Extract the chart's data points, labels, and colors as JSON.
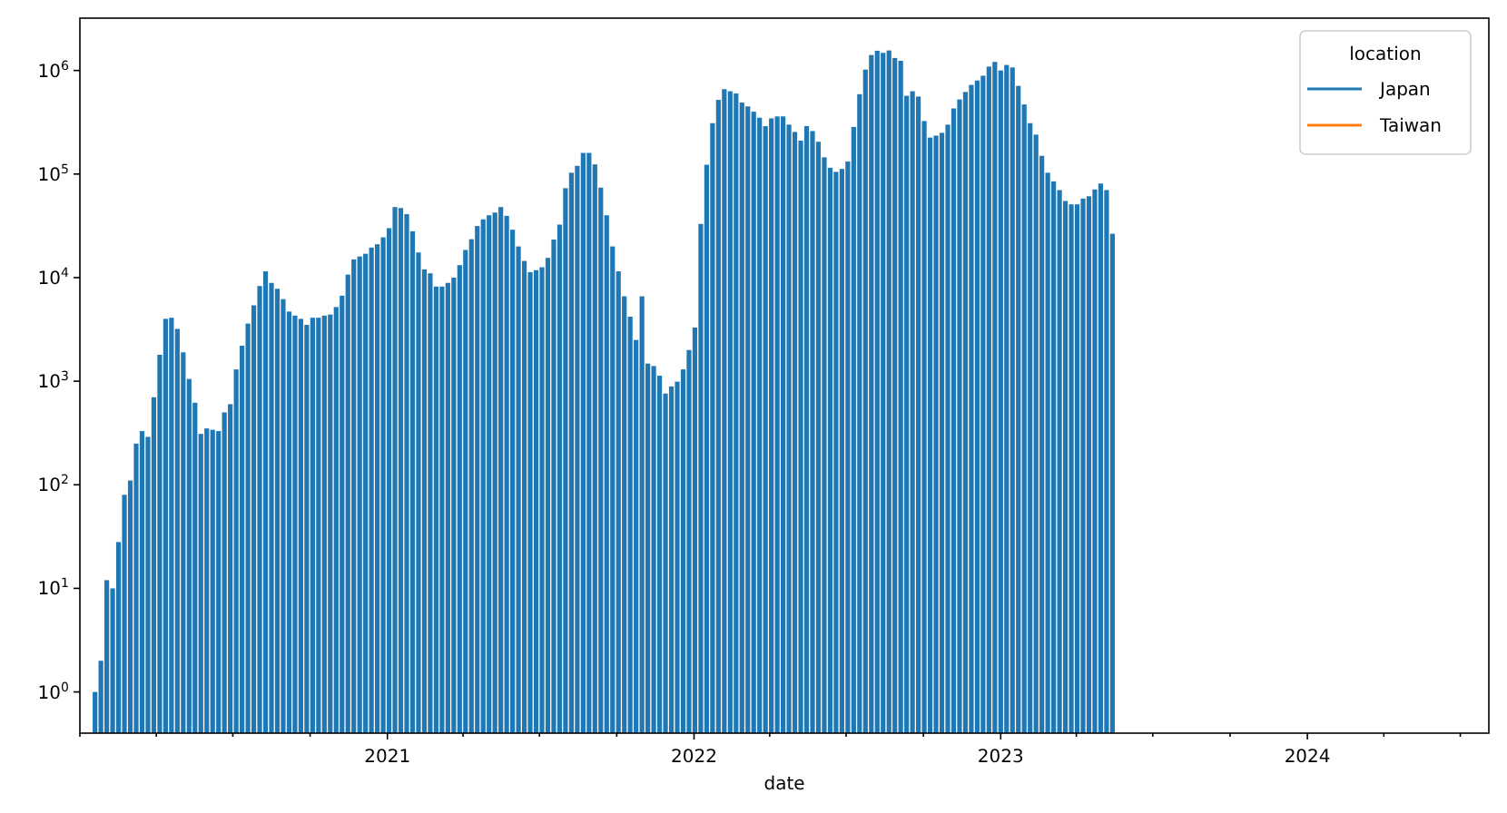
{
  "chart_data": {
    "type": "bar",
    "xlabel": "date",
    "legend_title": "location",
    "legend": "top right",
    "log": "y",
    "x": [
      "2020-01-19",
      "2020-01-26",
      "2020-02-02",
      "2020-02-09",
      "2020-02-16",
      "2020-02-23",
      "2020-03-01",
      "2020-03-08",
      "2020-03-15",
      "2020-03-22",
      "2020-03-29",
      "2020-04-05",
      "2020-04-12",
      "2020-04-19",
      "2020-04-26",
      "2020-05-03",
      "2020-05-10",
      "2020-05-17",
      "2020-05-24",
      "2020-05-31",
      "2020-06-07",
      "2020-06-14",
      "2020-06-21",
      "2020-06-28",
      "2020-07-05",
      "2020-07-12",
      "2020-07-19",
      "2020-07-26",
      "2020-08-02",
      "2020-08-09",
      "2020-08-16",
      "2020-08-23",
      "2020-08-30",
      "2020-09-06",
      "2020-09-13",
      "2020-09-20",
      "2020-09-27",
      "2020-10-04",
      "2020-10-11",
      "2020-10-18",
      "2020-10-25",
      "2020-11-01",
      "2020-11-08",
      "2020-11-15",
      "2020-11-22",
      "2020-11-29",
      "2020-12-06",
      "2020-12-13",
      "2020-12-20",
      "2020-12-27",
      "2021-01-03",
      "2021-01-10",
      "2021-01-17",
      "2021-01-24",
      "2021-01-31",
      "2021-02-07",
      "2021-02-14",
      "2021-02-21",
      "2021-02-28",
      "2021-03-07",
      "2021-03-14",
      "2021-03-21",
      "2021-03-28",
      "2021-04-04",
      "2021-04-11",
      "2021-04-18",
      "2021-04-25",
      "2021-05-02",
      "2021-05-09",
      "2021-05-16",
      "2021-05-23",
      "2021-05-30",
      "2021-06-06",
      "2021-06-13",
      "2021-06-20",
      "2021-06-27",
      "2021-07-04",
      "2021-07-11",
      "2021-07-18",
      "2021-07-25",
      "2021-08-01",
      "2021-08-08",
      "2021-08-15",
      "2021-08-22",
      "2021-08-29",
      "2021-09-05",
      "2021-09-12",
      "2021-09-19",
      "2021-09-26",
      "2021-10-03",
      "2021-10-10",
      "2021-10-17",
      "2021-10-24",
      "2021-10-31",
      "2021-11-07",
      "2021-11-14",
      "2021-11-21",
      "2021-11-28",
      "2021-12-05",
      "2021-12-12",
      "2021-12-19",
      "2021-12-26",
      "2022-01-02",
      "2022-01-09",
      "2022-01-16",
      "2022-01-23",
      "2022-01-30",
      "2022-02-06",
      "2022-02-13",
      "2022-02-20",
      "2022-02-27",
      "2022-03-06",
      "2022-03-13",
      "2022-03-20",
      "2022-03-27",
      "2022-04-03",
      "2022-04-10",
      "2022-04-17",
      "2022-04-24",
      "2022-05-01",
      "2022-05-08",
      "2022-05-15",
      "2022-05-22",
      "2022-05-29",
      "2022-06-05",
      "2022-06-12",
      "2022-06-19",
      "2022-06-26",
      "2022-07-03",
      "2022-07-10",
      "2022-07-17",
      "2022-07-24",
      "2022-07-31",
      "2022-08-07",
      "2022-08-14",
      "2022-08-21",
      "2022-08-28",
      "2022-09-04",
      "2022-09-11",
      "2022-09-18",
      "2022-09-25",
      "2022-10-02",
      "2022-10-09",
      "2022-10-16",
      "2022-10-23",
      "2022-10-30",
      "2022-11-06",
      "2022-11-13",
      "2022-11-20",
      "2022-11-27",
      "2022-12-04",
      "2022-12-11",
      "2022-12-18",
      "2022-12-25",
      "2023-01-01",
      "2023-01-08",
      "2023-01-15",
      "2023-01-22",
      "2023-01-29",
      "2023-02-05",
      "2023-02-12",
      "2023-02-19",
      "2023-02-26",
      "2023-03-05",
      "2023-03-12",
      "2023-03-19",
      "2023-03-26",
      "2023-04-02",
      "2023-04-09",
      "2023-04-16",
      "2023-04-23",
      "2023-04-30",
      "2023-05-07",
      "2023-05-14"
    ],
    "series": [
      {
        "name": "Japan",
        "color": "#1f77b4",
        "values": [
          1,
          2,
          12,
          10,
          28,
          80,
          110,
          250,
          330,
          290,
          700,
          1800,
          4000,
          4100,
          3200,
          1900,
          1050,
          620,
          310,
          350,
          340,
          330,
          500,
          600,
          1300,
          2200,
          3600,
          5400,
          8300,
          11500,
          8900,
          7800,
          6200,
          4700,
          4300,
          4000,
          3500,
          4100,
          4100,
          4300,
          4400,
          5200,
          6700,
          10700,
          15000,
          16000,
          17000,
          19500,
          21000,
          24500,
          30000,
          48000,
          47000,
          41000,
          28000,
          17500,
          12000,
          11000,
          8200,
          8200,
          8900,
          10000,
          13200,
          18500,
          23500,
          31500,
          36500,
          40000,
          42500,
          48000,
          39500,
          29000,
          20000,
          14500,
          11300,
          11800,
          12600,
          15500,
          23300,
          32500,
          73000,
          103000,
          120000,
          160000,
          160000,
          124000,
          74000,
          40000,
          20000,
          11500,
          6600,
          4200,
          2500,
          6600,
          1480,
          1400,
          1130,
          760,
          890,
          990,
          1300,
          2000,
          3300,
          33000,
          123000,
          310000,
          520000,
          660000,
          630000,
          600000,
          490000,
          450000,
          400000,
          350000,
          290000,
          345000,
          360000,
          360000,
          300000,
          255000,
          210000,
          290000,
          260000,
          205000,
          145000,
          115000,
          105000,
          112000,
          132000,
          285000,
          590000,
          1020000,
          1410000,
          1550000,
          1480000,
          1560000,
          1320000,
          1240000,
          570000,
          630000,
          560000,
          325000,
          225000,
          235000,
          250000,
          300000,
          430000,
          525000,
          620000,
          725000,
          800000,
          890000,
          1090000,
          1210000,
          1000000,
          1130000,
          1070000,
          710000,
          470000,
          310000,
          240000,
          150000,
          103000,
          85000,
          70000,
          55000,
          51000,
          51000,
          58000,
          61000,
          71000,
          81000,
          70000,
          26500
        ]
      },
      {
        "name": "Taiwan",
        "color": "#ff7f0e",
        "values": [
          null,
          null,
          null,
          null,
          null,
          null,
          null,
          null,
          null,
          null,
          null,
          null,
          null,
          null,
          null,
          null,
          null,
          null,
          null,
          null,
          null,
          null,
          null,
          null,
          null,
          null,
          null,
          null,
          null,
          null,
          null,
          null,
          null,
          null,
          null,
          null,
          null,
          null,
          null,
          null,
          null,
          null,
          null,
          null,
          null,
          null,
          null,
          null,
          null,
          null,
          null,
          null,
          null,
          null,
          null,
          null,
          null,
          null,
          null,
          null,
          null,
          null,
          null,
          null,
          null,
          null,
          null,
          null,
          null,
          null,
          null,
          null,
          null,
          null,
          null,
          null,
          null,
          null,
          null,
          null,
          null,
          null,
          null,
          null,
          null,
          null,
          null,
          null,
          null,
          null,
          null,
          null,
          null,
          null,
          null,
          null,
          null,
          null,
          null,
          null,
          null,
          null,
          null,
          null,
          null,
          null,
          null,
          null,
          null,
          null,
          null,
          null,
          null,
          null,
          null,
          null,
          null,
          null,
          null,
          null,
          null,
          null,
          null,
          null,
          null,
          null,
          null,
          null,
          null,
          null,
          null,
          null,
          null,
          null,
          null,
          null,
          null,
          null,
          null,
          null,
          null,
          null,
          null,
          null,
          null,
          null,
          null,
          null,
          null,
          null,
          null,
          null,
          null,
          null,
          null,
          null,
          null,
          null,
          null,
          null,
          null,
          null,
          null,
          null,
          null,
          null,
          null,
          null,
          null,
          null,
          null,
          null,
          null,
          null
        ]
      }
    ],
    "xlim": [
      "2020-01-01",
      "2024-08-04"
    ],
    "xticks": [
      {
        "value": "2020-01-01",
        "label": null
      },
      {
        "value": "2020-04-01",
        "label": null
      },
      {
        "value": "2020-07-01",
        "label": null
      },
      {
        "value": "2020-10-01",
        "label": null
      },
      {
        "value": "2021-01-01",
        "label": "2021"
      },
      {
        "value": "2021-04-01",
        "label": null
      },
      {
        "value": "2021-07-01",
        "label": null
      },
      {
        "value": "2021-10-01",
        "label": null
      },
      {
        "value": "2022-01-01",
        "label": "2022"
      },
      {
        "value": "2022-04-01",
        "label": null
      },
      {
        "value": "2022-07-01",
        "label": null
      },
      {
        "value": "2022-10-01",
        "label": null
      },
      {
        "value": "2023-01-01",
        "label": "2023"
      },
      {
        "value": "2023-04-01",
        "label": null
      },
      {
        "value": "2023-07-01",
        "label": null
      },
      {
        "value": "2023-10-01",
        "label": null
      },
      {
        "value": "2024-01-01",
        "label": "2024"
      },
      {
        "value": "2024-04-01",
        "label": null
      },
      {
        "value": "2024-07-01",
        "label": null
      }
    ],
    "ylim": [
      0.4,
      3200000
    ],
    "yticks": [
      {
        "value": 1,
        "label": "10$^{0}$"
      },
      {
        "value": 10,
        "label": "10$^{1}$"
      },
      {
        "value": 100,
        "label": "10$^{2}$"
      },
      {
        "value": 1000,
        "label": "10$^{3}$"
      },
      {
        "value": 10000,
        "label": "10$^{4}$"
      },
      {
        "value": 100000,
        "label": "10$^{5}$"
      },
      {
        "value": 1000000,
        "label": "10$^{6}$"
      }
    ]
  }
}
